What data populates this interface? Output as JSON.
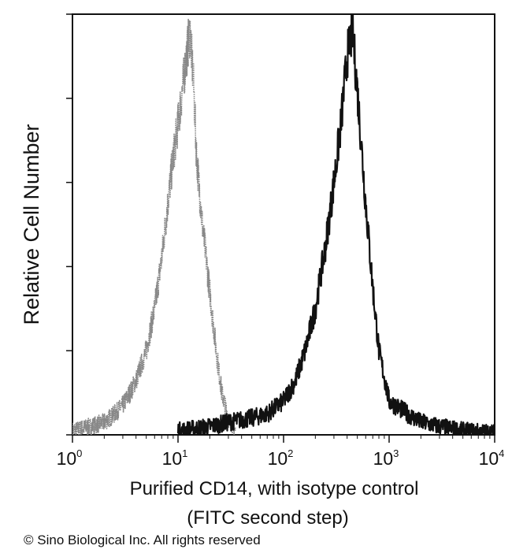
{
  "chart_data": {
    "type": "line",
    "xscale": "log",
    "xlim": [
      1,
      10000
    ],
    "ylim": [
      0,
      1
    ],
    "xlabel_line1": "Purified CD14, with isotype control",
    "xlabel_line2": "(FITC second step)",
    "ylabel": "Relative Cell Number",
    "grid": false,
    "x_ticks": [
      {
        "base": "10",
        "exp": "0",
        "value": 1
      },
      {
        "base": "10",
        "exp": "1",
        "value": 10
      },
      {
        "base": "10",
        "exp": "2",
        "value": 100
      },
      {
        "base": "10",
        "exp": "3",
        "value": 1000
      },
      {
        "base": "10",
        "exp": "4",
        "value": 10000
      }
    ],
    "y_ticks": [
      0,
      0.2,
      0.4,
      0.6,
      0.8,
      1.0
    ],
    "series": [
      {
        "style": "dotted-gray",
        "color": "#888888",
        "x": [
          1,
          1.5,
          2,
          2.5,
          3,
          3.5,
          4,
          5,
          6,
          7,
          8,
          9,
          10,
          11,
          12,
          13,
          14,
          15,
          17,
          20,
          23,
          26,
          30,
          35
        ],
        "y": [
          0.01,
          0.02,
          0.03,
          0.05,
          0.07,
          0.1,
          0.13,
          0.2,
          0.3,
          0.42,
          0.55,
          0.66,
          0.74,
          0.82,
          0.9,
          0.96,
          0.84,
          0.66,
          0.5,
          0.34,
          0.2,
          0.1,
          0.04,
          0.01
        ]
      },
      {
        "style": "solid-black",
        "color": "#111111",
        "x": [
          10,
          20,
          30,
          50,
          70,
          100,
          130,
          160,
          200,
          250,
          300,
          350,
          400,
          450,
          500,
          600,
          700,
          800,
          1000,
          1500,
          2000,
          3000,
          5000,
          10000
        ],
        "y": [
          0.01,
          0.02,
          0.03,
          0.04,
          0.05,
          0.08,
          0.13,
          0.2,
          0.3,
          0.45,
          0.6,
          0.74,
          0.9,
          0.96,
          0.82,
          0.55,
          0.35,
          0.2,
          0.08,
          0.05,
          0.03,
          0.02,
          0.01,
          0.005
        ]
      }
    ]
  },
  "copyright": "© Sino Biological Inc. All rights reserved"
}
